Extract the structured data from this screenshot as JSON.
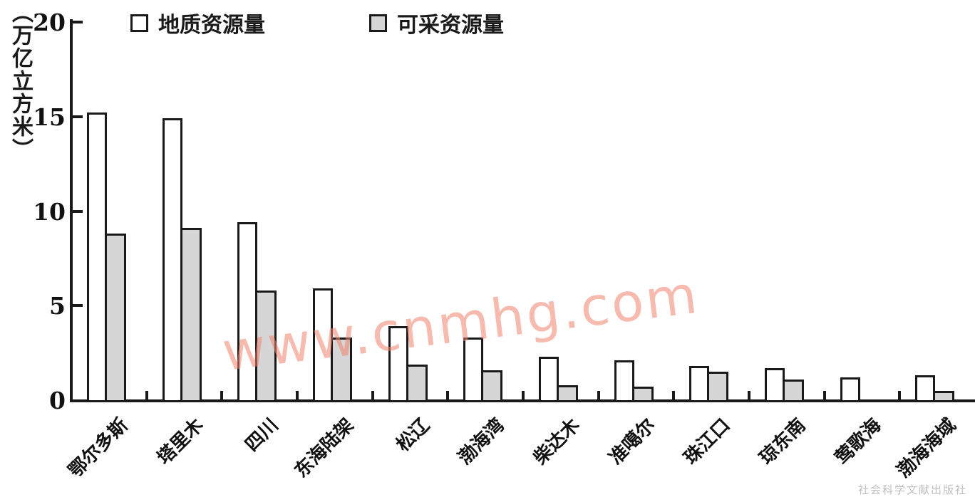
{
  "chart_data": {
    "type": "bar",
    "title": "",
    "y_axis_title": "（万亿立方米）",
    "ylim": [
      0,
      20
    ],
    "yticks": [
      0,
      5,
      10,
      15,
      20
    ],
    "grid": false,
    "legend_position": "top",
    "categories": [
      "鄂尔多斯",
      "塔里木",
      "四川",
      "东海陆架",
      "松辽",
      "渤海湾",
      "柴达木",
      "准噶尔",
      "珠江口",
      "琼东南",
      "莺歌海",
      "渤海海域"
    ],
    "series": [
      {
        "name": "地质资源量",
        "fill": "#ffffff",
        "values": [
          15.2,
          14.9,
          9.4,
          5.9,
          3.9,
          3.3,
          2.3,
          2.1,
          1.8,
          1.7,
          1.2,
          1.3
        ]
      },
      {
        "name": "可采资源量",
        "fill": "#d6d6d6",
        "values": [
          8.8,
          9.1,
          5.8,
          3.3,
          1.9,
          1.6,
          0.8,
          0.7,
          1.5,
          1.1,
          0,
          0.5
        ]
      }
    ]
  },
  "watermarks": {
    "center": "www.cnmhg.com",
    "bottom_right": "社会科学文献出版社"
  },
  "colors": {
    "axis": "#1a1a1a",
    "bar_border": "#1a1a1a",
    "geological_fill": "#ffffff",
    "recoverable_fill": "#d6d6d6",
    "watermark": "#f0826c",
    "publisher_watermark": "#aaaaaa"
  }
}
